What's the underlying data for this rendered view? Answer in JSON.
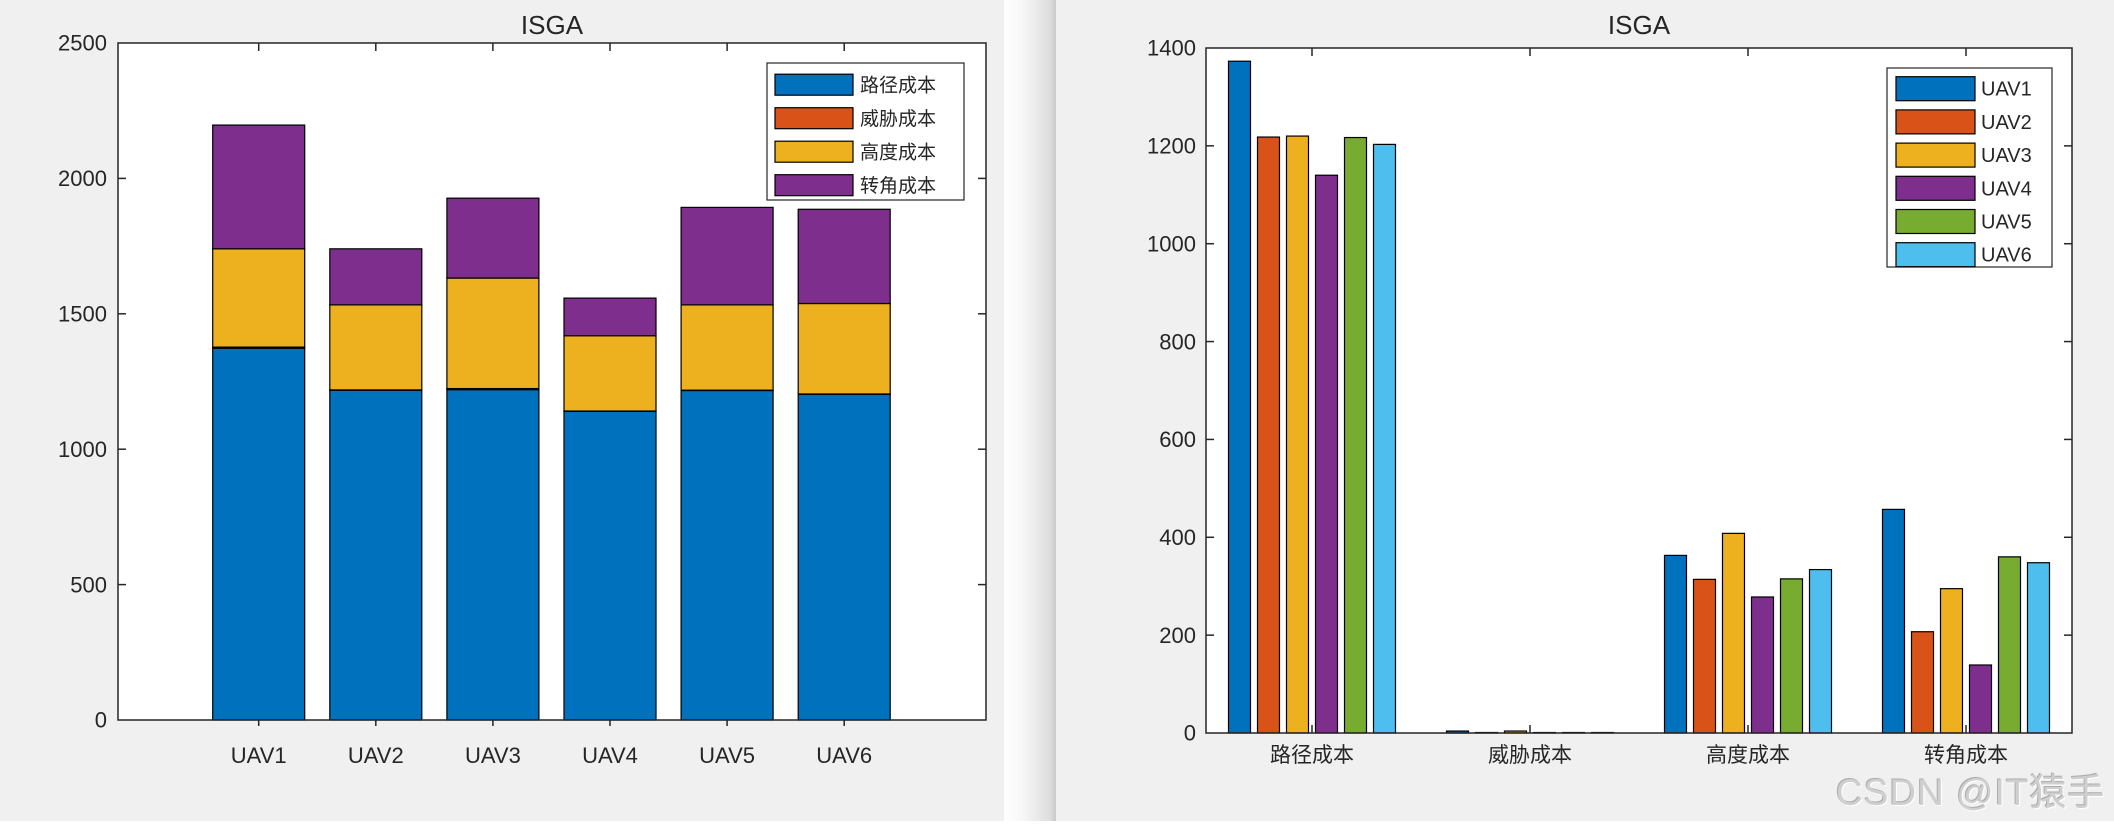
{
  "watermark": "CSDN @IT猿手",
  "colors": {
    "figure_bg": "#F0F0F0",
    "plot_bg": "#FFFFFF",
    "axis": "#262626",
    "text": "#262626",
    "bar_edge": "#000000",
    "legend_bg": "#FFFFFF"
  },
  "chart_data": [
    {
      "id": "left",
      "type": "bar",
      "stacked": true,
      "title": "ISGA",
      "categories": [
        "UAV1",
        "UAV2",
        "UAV3",
        "UAV4",
        "UAV5",
        "UAV6"
      ],
      "series": [
        {
          "name": "路径成本",
          "color": "#0072BD",
          "values": [
            1373,
            1218,
            1220,
            1140,
            1217,
            1203
          ]
        },
        {
          "name": "威胁成本",
          "color": "#D95319",
          "values": [
            4,
            1,
            4,
            1,
            1,
            1
          ]
        },
        {
          "name": "高度成本",
          "color": "#EDB120",
          "values": [
            363,
            314,
            408,
            278,
            315,
            334
          ]
        },
        {
          "name": "转角成本",
          "color": "#7E2F8E",
          "values": [
            457,
            207,
            295,
            139,
            360,
            348
          ]
        }
      ],
      "ylim": [
        0,
        2500
      ],
      "ytick_step": 500,
      "yticks": [
        "0",
        "500",
        "1000",
        "1500",
        "2000",
        "2500"
      ],
      "legend_position": "top-right-inside",
      "grid": false
    },
    {
      "id": "right",
      "type": "bar",
      "stacked": false,
      "title": "ISGA",
      "categories": [
        "路径成本",
        "威胁成本",
        "高度成本",
        "转角成本"
      ],
      "series": [
        {
          "name": "UAV1",
          "color": "#0072BD",
          "values": [
            1373,
            4,
            363,
            457
          ]
        },
        {
          "name": "UAV2",
          "color": "#D95319",
          "values": [
            1218,
            1,
            314,
            207
          ]
        },
        {
          "name": "UAV3",
          "color": "#EDB120",
          "values": [
            1220,
            4,
            408,
            295
          ]
        },
        {
          "name": "UAV4",
          "color": "#7E2F8E",
          "values": [
            1140,
            1,
            278,
            139
          ]
        },
        {
          "name": "UAV5",
          "color": "#77AC30",
          "values": [
            1217,
            1,
            315,
            360
          ]
        },
        {
          "name": "UAV6",
          "color": "#4DBEEE",
          "values": [
            1203,
            1,
            334,
            348
          ]
        }
      ],
      "ylim": [
        0,
        1400
      ],
      "ytick_step": 200,
      "yticks": [
        "0",
        "200",
        "400",
        "600",
        "800",
        "1000",
        "1200",
        "1400"
      ],
      "legend_position": "top-right-inside",
      "grid": false
    }
  ]
}
